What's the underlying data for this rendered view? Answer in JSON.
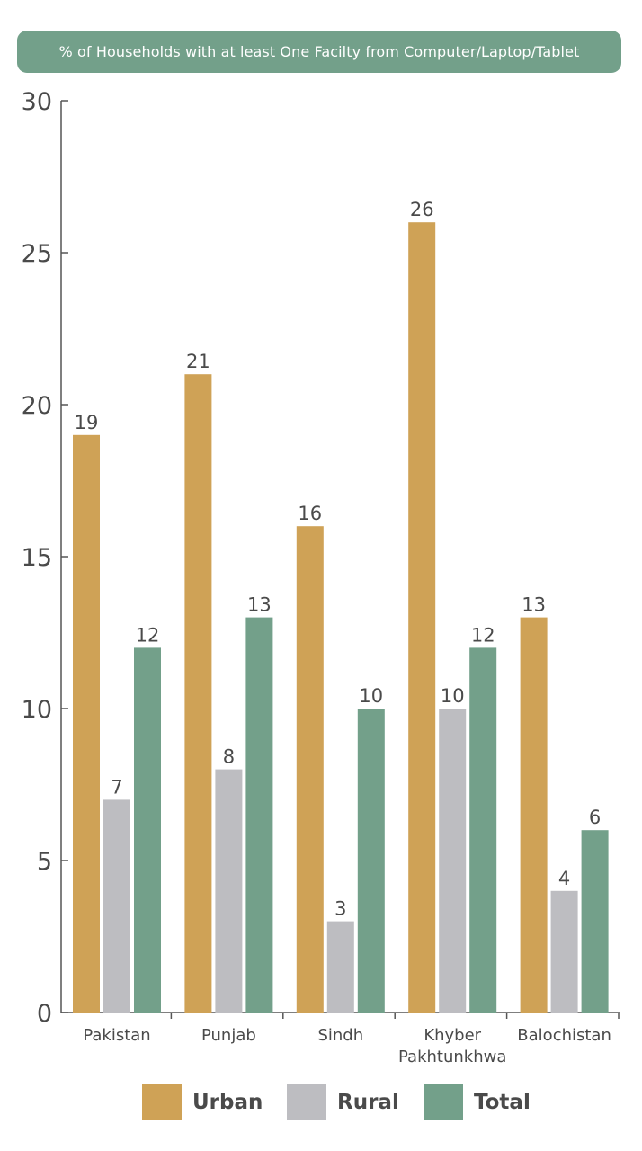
{
  "chart_data": {
    "type": "bar",
    "title": "% of Households with at least One Facilty from Computer/Laptop/Tablet",
    "categories": [
      "Pakistan",
      "Punjab",
      "Sindh",
      "Khyber Pakhtunkhwa",
      "Balochistan"
    ],
    "category_lines": [
      [
        "Pakistan"
      ],
      [
        "Punjab"
      ],
      [
        "Sindh"
      ],
      [
        "Khyber",
        "Pakhtunkhwa"
      ],
      [
        "Balochistan"
      ]
    ],
    "series": [
      {
        "name": "Urban",
        "color": "#cfa256",
        "values": [
          19,
          21,
          16,
          26,
          13
        ]
      },
      {
        "name": "Rural",
        "color": "#bdbdc1",
        "values": [
          7,
          8,
          3,
          10,
          4
        ]
      },
      {
        "name": "Total",
        "color": "#73a08a",
        "values": [
          12,
          13,
          10,
          12,
          6
        ]
      }
    ],
    "ylim": [
      0,
      30
    ],
    "yticks": [
      0,
      5,
      10,
      15,
      20,
      25,
      30
    ],
    "xlabel": "",
    "ylabel": "",
    "grid": false,
    "legend_position": "bottom",
    "data_labels": true
  }
}
